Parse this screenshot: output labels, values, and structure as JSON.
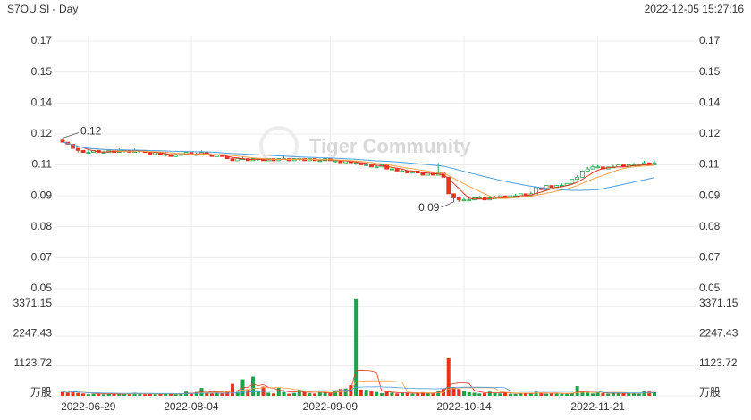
{
  "chart_data": {
    "type": "candlestick",
    "title": "S7OU.SI - Day",
    "timestamp": "2022-12-05 15:27:16",
    "watermark": "Tiger Community",
    "max_label": "0.12",
    "min_label": "0.09",
    "up_color": "#1fa34a",
    "down_color": "#e8341c",
    "ma_colors": [
      "#e8341c",
      "#f5a34a",
      "#4a9fe0"
    ],
    "grid": true,
    "categories": [
      null,
      null,
      null,
      null,
      null,
      "2022-06-29",
      null,
      null,
      null,
      null,
      null,
      null,
      null,
      null,
      null,
      null,
      null,
      null,
      null,
      null,
      null,
      null,
      null,
      null,
      null,
      "2022-08-04",
      null,
      null,
      null,
      null,
      null,
      null,
      null,
      null,
      null,
      null,
      null,
      null,
      null,
      null,
      null,
      null,
      null,
      null,
      null,
      null,
      null,
      null,
      null,
      null,
      null,
      null,
      "2022-09-09",
      null,
      null,
      null,
      null,
      null,
      null,
      null,
      null,
      null,
      null,
      null,
      null,
      null,
      null,
      null,
      null,
      null,
      null,
      null,
      null,
      null,
      null,
      null,
      null,
      null,
      "2022-10-14",
      null,
      null,
      null,
      null,
      null,
      null,
      null,
      null,
      null,
      null,
      null,
      null,
      null,
      null,
      null,
      null,
      null,
      null,
      null,
      null,
      null,
      null,
      null,
      null,
      null,
      "2022-11-21",
      null,
      null,
      null,
      null,
      null,
      null,
      null,
      null,
      null,
      null,
      null
    ],
    "open": [
      0.122,
      0.121,
      0.12,
      0.118,
      0.117,
      0.116,
      0.116,
      0.117,
      0.116,
      0.116,
      0.117,
      0.116,
      0.117,
      0.117,
      0.116,
      0.117,
      0.117,
      0.116,
      0.115,
      0.116,
      0.115,
      0.115,
      0.114,
      0.115,
      0.115,
      0.116,
      0.115,
      0.115,
      0.116,
      0.115,
      0.114,
      0.115,
      0.114,
      0.113,
      0.112,
      0.113,
      0.113,
      0.112,
      0.113,
      0.113,
      0.112,
      0.113,
      0.112,
      0.113,
      0.113,
      0.112,
      0.113,
      0.113,
      0.112,
      0.113,
      0.112,
      0.112,
      0.113,
      0.112,
      0.112,
      0.111,
      0.112,
      0.111,
      0.111,
      0.11,
      0.11,
      0.109,
      0.109,
      0.11,
      0.108,
      0.108,
      0.107,
      0.107,
      0.106,
      0.107,
      0.106,
      0.105,
      0.106,
      0.105,
      0.106,
      0.104,
      0.096,
      0.094,
      0.093,
      0.093,
      0.093,
      0.094,
      0.094,
      0.093,
      0.094,
      0.094,
      0.095,
      0.094,
      0.095,
      0.095,
      0.096,
      0.095,
      0.096,
      0.099,
      0.098,
      0.1,
      0.099,
      0.1,
      0.1,
      0.101,
      0.103,
      0.104,
      0.107,
      0.108,
      0.109,
      0.109,
      0.108,
      0.109,
      0.109,
      0.11,
      0.109,
      0.11,
      0.11,
      0.11,
      0.111,
      0.11
    ],
    "high": [
      0.123,
      0.121,
      0.12,
      0.118,
      0.117,
      0.117,
      0.117,
      0.117,
      0.117,
      0.117,
      0.117,
      0.118,
      0.117,
      0.117,
      0.118,
      0.117,
      0.117,
      0.116,
      0.116,
      0.116,
      0.116,
      0.115,
      0.115,
      0.116,
      0.116,
      0.116,
      0.116,
      0.117,
      0.116,
      0.115,
      0.115,
      0.115,
      0.114,
      0.113,
      0.113,
      0.114,
      0.113,
      0.113,
      0.113,
      0.113,
      0.113,
      0.113,
      0.113,
      0.114,
      0.113,
      0.113,
      0.113,
      0.113,
      0.113,
      0.113,
      0.113,
      0.113,
      0.113,
      0.112,
      0.112,
      0.112,
      0.112,
      0.112,
      0.111,
      0.111,
      0.11,
      0.11,
      0.11,
      0.11,
      0.109,
      0.108,
      0.108,
      0.107,
      0.107,
      0.107,
      0.106,
      0.106,
      0.106,
      0.111,
      0.106,
      0.104,
      0.096,
      0.094,
      0.094,
      0.094,
      0.094,
      0.095,
      0.094,
      0.094,
      0.095,
      0.095,
      0.095,
      0.095,
      0.096,
      0.096,
      0.096,
      0.097,
      0.099,
      0.099,
      0.1,
      0.1,
      0.1,
      0.101,
      0.101,
      0.103,
      0.105,
      0.107,
      0.109,
      0.11,
      0.11,
      0.109,
      0.109,
      0.11,
      0.11,
      0.11,
      0.11,
      0.111,
      0.11,
      0.112,
      0.111,
      0.112
    ],
    "low": [
      0.121,
      0.12,
      0.118,
      0.116,
      0.116,
      0.116,
      0.116,
      0.116,
      0.116,
      0.116,
      0.116,
      0.116,
      0.116,
      0.116,
      0.116,
      0.116,
      0.116,
      0.115,
      0.115,
      0.115,
      0.114,
      0.114,
      0.114,
      0.115,
      0.115,
      0.115,
      0.115,
      0.115,
      0.115,
      0.114,
      0.114,
      0.114,
      0.113,
      0.112,
      0.112,
      0.113,
      0.112,
      0.112,
      0.112,
      0.112,
      0.112,
      0.112,
      0.112,
      0.113,
      0.112,
      0.112,
      0.112,
      0.112,
      0.112,
      0.112,
      0.112,
      0.112,
      0.112,
      0.111,
      0.111,
      0.111,
      0.111,
      0.11,
      0.11,
      0.11,
      0.109,
      0.109,
      0.109,
      0.108,
      0.108,
      0.107,
      0.107,
      0.106,
      0.106,
      0.106,
      0.105,
      0.105,
      0.105,
      0.105,
      0.104,
      0.096,
      0.092,
      0.092,
      0.093,
      0.093,
      0.093,
      0.094,
      0.093,
      0.093,
      0.094,
      0.094,
      0.094,
      0.094,
      0.095,
      0.095,
      0.095,
      0.095,
      0.096,
      0.098,
      0.098,
      0.099,
      0.099,
      0.1,
      0.1,
      0.101,
      0.103,
      0.104,
      0.107,
      0.108,
      0.109,
      0.108,
      0.108,
      0.109,
      0.109,
      0.109,
      0.109,
      0.11,
      0.109,
      0.11,
      0.11,
      0.11
    ],
    "close": [
      0.121,
      0.12,
      0.118,
      0.117,
      0.116,
      0.116,
      0.117,
      0.116,
      0.116,
      0.117,
      0.116,
      0.117,
      0.117,
      0.116,
      0.117,
      0.117,
      0.116,
      0.115,
      0.116,
      0.115,
      0.115,
      0.114,
      0.115,
      0.115,
      0.116,
      0.115,
      0.115,
      0.116,
      0.115,
      0.114,
      0.115,
      0.114,
      0.113,
      0.112,
      0.113,
      0.113,
      0.112,
      0.113,
      0.113,
      0.112,
      0.113,
      0.112,
      0.113,
      0.113,
      0.112,
      0.113,
      0.113,
      0.112,
      0.113,
      0.112,
      0.112,
      0.113,
      0.112,
      0.112,
      0.111,
      0.112,
      0.111,
      0.111,
      0.11,
      0.11,
      0.109,
      0.109,
      0.11,
      0.108,
      0.108,
      0.107,
      0.107,
      0.106,
      0.107,
      0.106,
      0.105,
      0.106,
      0.105,
      0.106,
      0.104,
      0.096,
      0.094,
      0.093,
      0.093,
      0.093,
      0.094,
      0.094,
      0.093,
      0.094,
      0.094,
      0.095,
      0.094,
      0.095,
      0.095,
      0.096,
      0.095,
      0.096,
      0.099,
      0.098,
      0.1,
      0.099,
      0.1,
      0.1,
      0.101,
      0.103,
      0.104,
      0.107,
      0.108,
      0.109,
      0.109,
      0.108,
      0.109,
      0.109,
      0.11,
      0.109,
      0.11,
      0.11,
      0.11,
      0.111,
      0.11,
      0.111
    ],
    "volume": [
      150,
      120,
      200,
      110,
      90,
      60,
      80,
      70,
      60,
      90,
      70,
      90,
      60,
      80,
      120,
      70,
      60,
      90,
      60,
      70,
      80,
      100,
      60,
      70,
      200,
      80,
      150,
      300,
      110,
      90,
      120,
      100,
      180,
      450,
      150,
      620,
      250,
      720,
      180,
      350,
      120,
      90,
      300,
      150,
      80,
      110,
      240,
      150,
      100,
      90,
      150,
      130,
      110,
      180,
      260,
      280,
      400,
      3640,
      240,
      230,
      180,
      150,
      100,
      160,
      120,
      90,
      110,
      100,
      80,
      120,
      140,
      100,
      90,
      180,
      260,
      1415,
      320,
      260,
      180,
      140,
      120,
      90,
      100,
      160,
      110,
      90,
      140,
      80,
      70,
      100,
      110,
      90,
      150,
      120,
      80,
      100,
      90,
      80,
      70,
      110,
      370,
      150,
      130,
      90,
      120,
      100,
      80,
      110,
      90,
      120,
      100,
      90,
      80,
      180,
      160,
      140
    ],
    "ylim": [
      0.05,
      0.17
    ],
    "yticks": [
      {
        "value": 0.05,
        "label": "0.05"
      },
      {
        "value": 0.065,
        "label": "0.07"
      },
      {
        "value": 0.08,
        "label": "0.08"
      },
      {
        "value": 0.095,
        "label": "0.09"
      },
      {
        "value": 0.11,
        "label": "0.11"
      },
      {
        "value": 0.125,
        "label": "0.12"
      },
      {
        "value": 0.14,
        "label": "0.14"
      },
      {
        "value": 0.155,
        "label": "0.15"
      },
      {
        "value": 0.17,
        "label": "0.17"
      }
    ],
    "vlim": [
      0,
      3700
    ],
    "vticks": [
      {
        "value": 0,
        "label": "万股"
      },
      1123.72,
      2247.43,
      3371.15
    ]
  }
}
